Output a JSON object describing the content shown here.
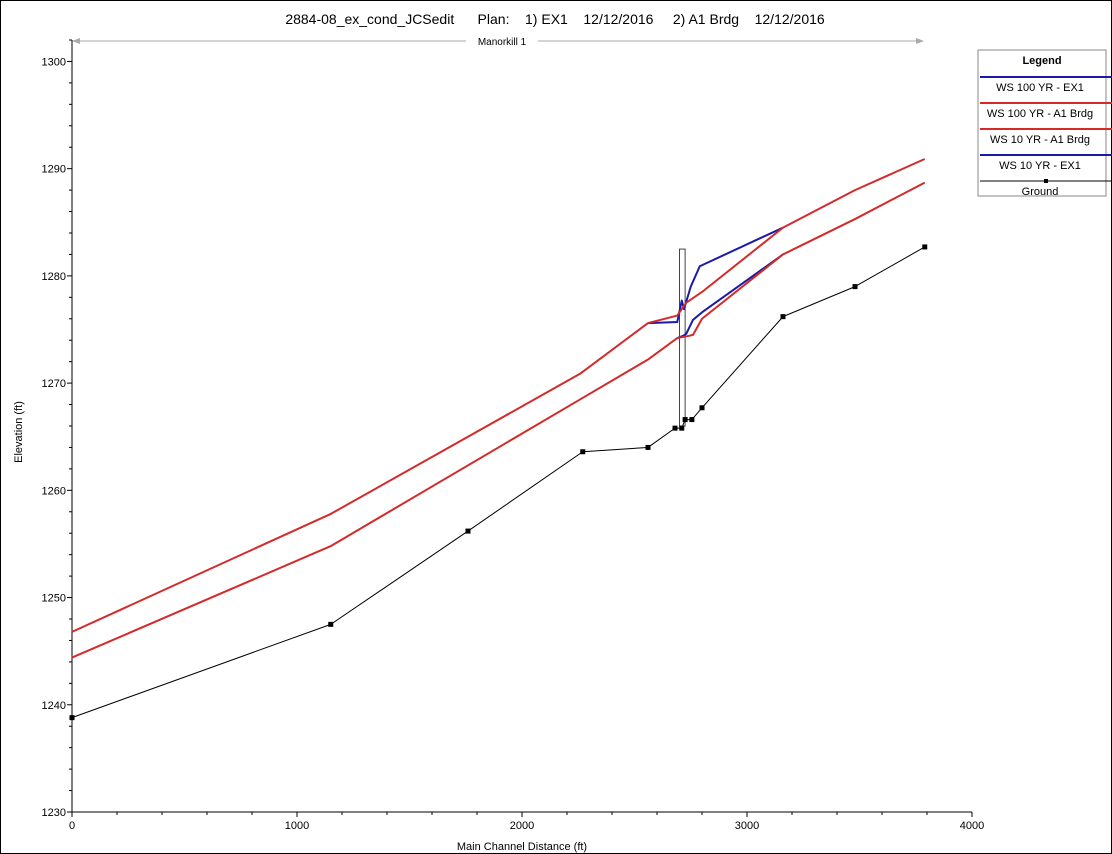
{
  "chart_data": {
    "type": "line",
    "title": "2884-08_ex_cond_JCSedit      Plan:    1) EX1    12/12/2016     2) A1 Brdg    12/12/2016",
    "reach_label": "Manorkill 1",
    "xlabel": "Main Channel Distance (ft)",
    "ylabel": "Elevation (ft)",
    "xlim": [
      0,
      4000
    ],
    "ylim": [
      1230,
      1302
    ],
    "x_ticks": [
      0,
      1000,
      2000,
      3000,
      4000
    ],
    "y_ticks": [
      1230,
      1240,
      1250,
      1260,
      1270,
      1280,
      1290,
      1300
    ],
    "grid": false,
    "legend": {
      "title": "Legend",
      "placement": "right",
      "entries": [
        {
          "label": "WS  100 YR - EX1",
          "color": "#1a1aa8"
        },
        {
          "label": "WS  100 YR - A1 Brdg",
          "color": "#d42a2a"
        },
        {
          "label": "WS  10 YR - A1 Brdg",
          "color": "#d42a2a"
        },
        {
          "label": "WS  10 YR - EX1",
          "color": "#1a1aa8"
        },
        {
          "label": "Ground",
          "color": "#000000"
        }
      ]
    },
    "bridge": {
      "x": [
        2700,
        2725
      ],
      "top": 1282.5,
      "bottom": 1266
    },
    "series": [
      {
        "name": "WS  100 YR - EX1",
        "color": "#1a1aa8",
        "width": 2,
        "x": [
          2560,
          2690,
          2710,
          2720,
          2750,
          2790,
          3160
        ],
        "y": [
          1275.6,
          1275.7,
          1277.7,
          1276.9,
          1279.0,
          1280.9,
          1284.5
        ]
      },
      {
        "name": "WS  10 YR - EX1",
        "color": "#1a1aa8",
        "width": 2,
        "x": [
          2690,
          2715,
          2730,
          2760,
          2800,
          3160
        ],
        "y": [
          1274.2,
          1274.4,
          1274.6,
          1275.9,
          1276.6,
          1282.0
        ]
      },
      {
        "name": "WS  100 YR - A1 Brdg",
        "color": "#d42a2a",
        "width": 2,
        "x": [
          0,
          1150,
          2260,
          2560,
          2690,
          2730,
          2800,
          3160,
          3480,
          3790
        ],
        "y": [
          1246.8,
          1257.8,
          1270.9,
          1275.6,
          1276.3,
          1277.5,
          1278.5,
          1284.5,
          1288.0,
          1290.9
        ]
      },
      {
        "name": "WS  10 YR - A1 Brdg",
        "color": "#d42a2a",
        "width": 2,
        "x": [
          0,
          1150,
          2260,
          2560,
          2690,
          2740,
          2760,
          2800,
          3160,
          3480,
          3790
        ],
        "y": [
          1244.4,
          1254.8,
          1268.5,
          1272.2,
          1274.2,
          1274.4,
          1274.5,
          1276.0,
          1282.0,
          1285.3,
          1288.7
        ]
      },
      {
        "name": "Ground",
        "color": "#000000",
        "width": 1,
        "markers": true,
        "x": [
          0,
          1150,
          1760,
          2270,
          2560,
          2680,
          2710,
          2725,
          2755,
          2800,
          3160,
          3480,
          3790
        ],
        "y": [
          1238.8,
          1247.5,
          1256.2,
          1263.6,
          1264.0,
          1265.8,
          1265.8,
          1266.6,
          1266.6,
          1267.7,
          1276.2,
          1279.0,
          1282.7
        ]
      }
    ]
  }
}
